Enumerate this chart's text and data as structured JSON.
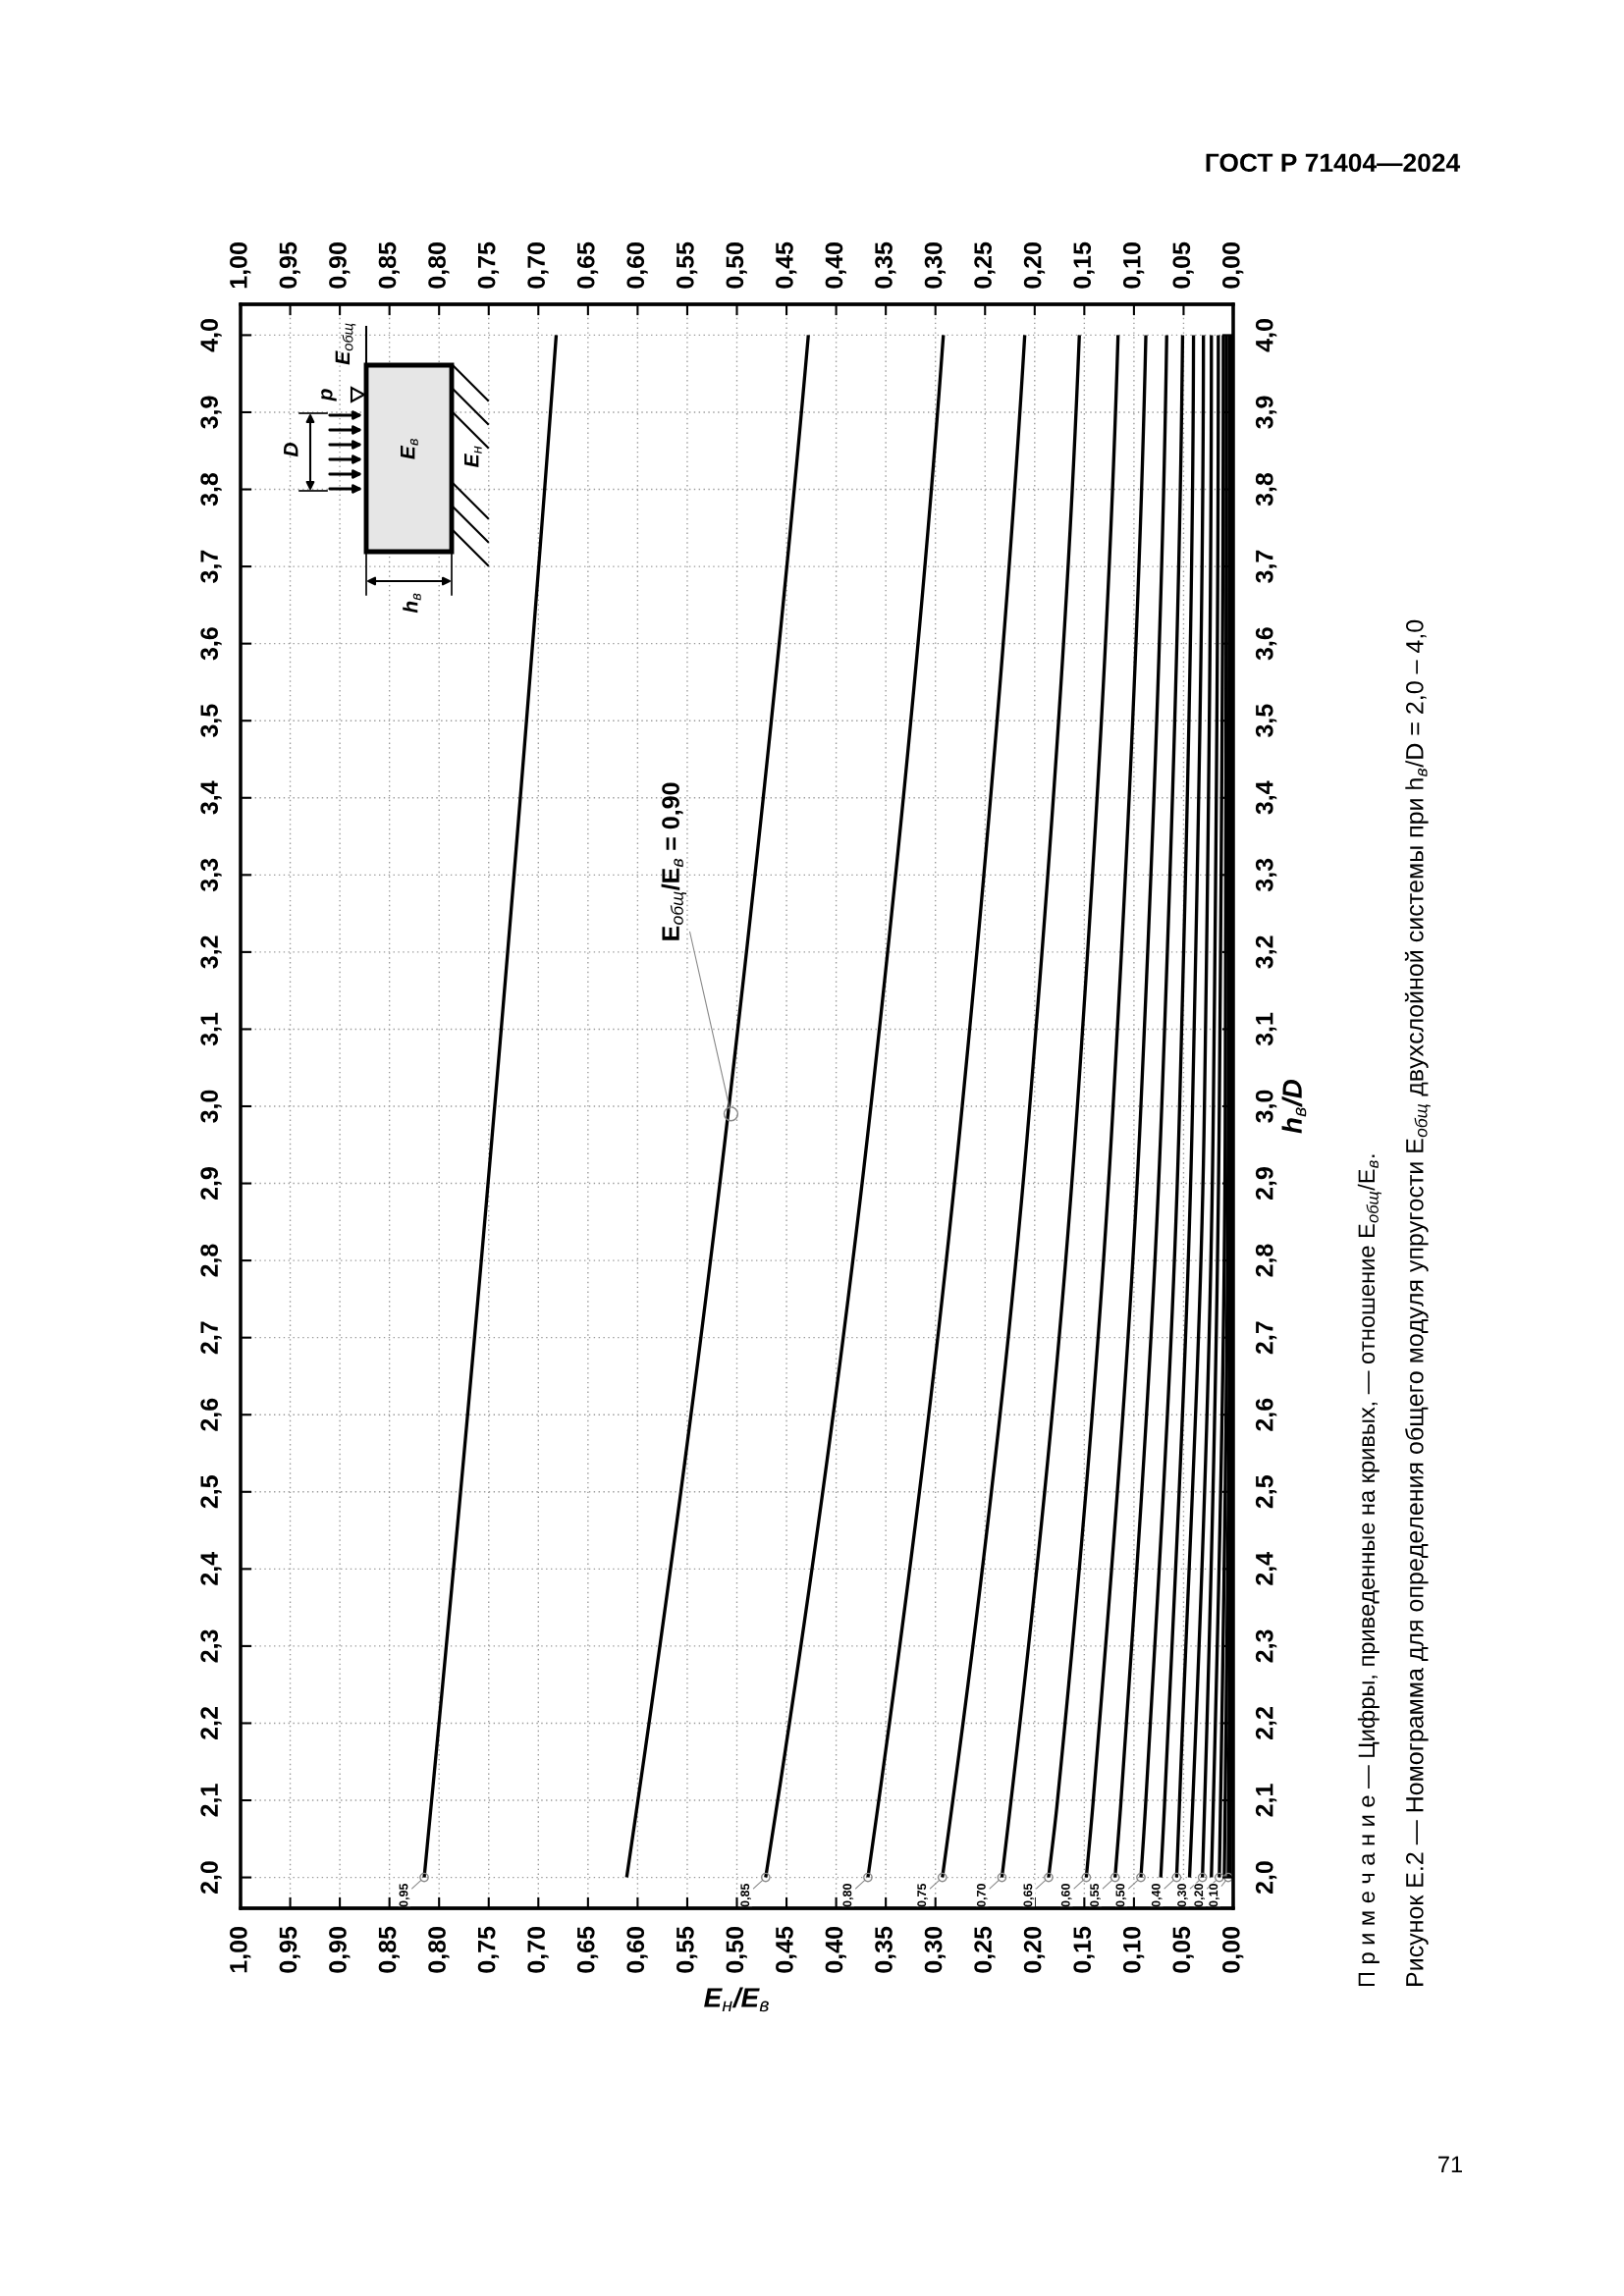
{
  "chart_data": {
    "type": "line",
    "title": "Рисунок Е.2 — Номограмма для определения общего модуля упругости E$_{общ}$ двухслойной системы при h$_{в}$/D = 2,0 – 4,0",
    "xlabel": "E$_{н}$/E$_{в}$",
    "y2label": "h$_{в}$/D",
    "xlim": [
      1.0,
      0.0
    ],
    "x2lim": [
      1.0,
      0.0
    ],
    "ylim": [
      1.96,
      4.04
    ],
    "y2lim": [
      1.96,
      4.04
    ],
    "xticks": [
      {
        "value": 1.0,
        "label": "1,00"
      },
      {
        "value": 0.95,
        "label": "0,95"
      },
      {
        "value": 0.9,
        "label": "0,90"
      },
      {
        "value": 0.85,
        "label": "0,85"
      },
      {
        "value": 0.8,
        "label": "0,80"
      },
      {
        "value": 0.75,
        "label": "0,75"
      },
      {
        "value": 0.7,
        "label": "0,70"
      },
      {
        "value": 0.65,
        "label": "0,65"
      },
      {
        "value": 0.6,
        "label": "0,60"
      },
      {
        "value": 0.55,
        "label": "0,55"
      },
      {
        "value": 0.5,
        "label": "0,50"
      },
      {
        "value": 0.45,
        "label": "0,45"
      },
      {
        "value": 0.4,
        "label": "0,40"
      },
      {
        "value": 0.35,
        "label": "0,35"
      },
      {
        "value": 0.3,
        "label": "0,30"
      },
      {
        "value": 0.25,
        "label": "0,25"
      },
      {
        "value": 0.2,
        "label": "0,20"
      },
      {
        "value": 0.15,
        "label": "0,15"
      },
      {
        "value": 0.1,
        "label": "0,10"
      },
      {
        "value": 0.05,
        "label": "0,05"
      },
      {
        "value": 0.0,
        "label": "0,00"
      }
    ],
    "x2ticks": [
      {
        "value": 1.0,
        "label": "1,00"
      },
      {
        "value": 0.95,
        "label": "0,95"
      },
      {
        "value": 0.9,
        "label": "0,90"
      },
      {
        "value": 0.85,
        "label": "0,85"
      },
      {
        "value": 0.8,
        "label": "0,80"
      },
      {
        "value": 0.75,
        "label": "0,75"
      },
      {
        "value": 0.7,
        "label": "0,70"
      },
      {
        "value": 0.65,
        "label": "0,65"
      },
      {
        "value": 0.6,
        "label": "0,60"
      },
      {
        "value": 0.55,
        "label": "0,55"
      },
      {
        "value": 0.5,
        "label": "0,50"
      },
      {
        "value": 0.45,
        "label": "0,45"
      },
      {
        "value": 0.4,
        "label": "0,40"
      },
      {
        "value": 0.35,
        "label": "0,35"
      },
      {
        "value": 0.3,
        "label": "0,30"
      },
      {
        "value": 0.25,
        "label": "0,25"
      },
      {
        "value": 0.2,
        "label": "0,20"
      },
      {
        "value": 0.15,
        "label": "0,15"
      },
      {
        "value": 0.1,
        "label": "0,10"
      },
      {
        "value": 0.05,
        "label": "0,05"
      },
      {
        "value": 0.0,
        "label": "0,00"
      }
    ],
    "yticks": [
      {
        "value": 2.0,
        "label": "2,0"
      },
      {
        "value": 2.1,
        "label": "2,1"
      },
      {
        "value": 2.2,
        "label": "2,2"
      },
      {
        "value": 2.3,
        "label": "2,3"
      },
      {
        "value": 2.4,
        "label": "2,4"
      },
      {
        "value": 2.5,
        "label": "2,5"
      },
      {
        "value": 2.6,
        "label": "2,6"
      },
      {
        "value": 2.7,
        "label": "2,7"
      },
      {
        "value": 2.8,
        "label": "2,8"
      },
      {
        "value": 2.9,
        "label": "2,9"
      },
      {
        "value": 3.0,
        "label": "3,0"
      },
      {
        "value": 3.1,
        "label": "3,1"
      },
      {
        "value": 3.2,
        "label": "3,2"
      },
      {
        "value": 3.3,
        "label": "3,3"
      },
      {
        "value": 3.4,
        "label": "3,4"
      },
      {
        "value": 3.5,
        "label": "3,5"
      },
      {
        "value": 3.6,
        "label": "3,6"
      },
      {
        "value": 3.7,
        "label": "3,7"
      },
      {
        "value": 3.8,
        "label": "3,8"
      },
      {
        "value": 3.9,
        "label": "3,9"
      },
      {
        "value": 4.0,
        "label": "4,0"
      }
    ],
    "y2ticks": [
      {
        "value": 2.0,
        "label": "2,0"
      },
      {
        "value": 2.1,
        "label": "2,1"
      },
      {
        "value": 2.2,
        "label": "2,2"
      },
      {
        "value": 2.3,
        "label": "2,3"
      },
      {
        "value": 2.4,
        "label": "2,4"
      },
      {
        "value": 2.5,
        "label": "2,5"
      },
      {
        "value": 2.6,
        "label": "2,6"
      },
      {
        "value": 2.7,
        "label": "2,7"
      },
      {
        "value": 2.8,
        "label": "2,8"
      },
      {
        "value": 2.9,
        "label": "2,9"
      },
      {
        "value": 3.0,
        "label": "3,0"
      },
      {
        "value": 3.1,
        "label": "3,1"
      },
      {
        "value": 3.2,
        "label": "3,2"
      },
      {
        "value": 3.3,
        "label": "3,3"
      },
      {
        "value": 3.4,
        "label": "3,4"
      },
      {
        "value": 3.5,
        "label": "3,5"
      },
      {
        "value": 3.6,
        "label": "3,6"
      },
      {
        "value": 3.7,
        "label": "3,7"
      },
      {
        "value": 3.8,
        "label": "3,8"
      },
      {
        "value": 3.9,
        "label": "3,9"
      },
      {
        "value": 4.0,
        "label": "4,0"
      }
    ],
    "grid": true,
    "series": [
      {
        "color": "#000000",
        "x": [
          0.815,
          0.744,
          0.682
        ],
        "values": [
          2.0,
          3.0,
          4.0
        ]
      },
      {
        "color": "#000000",
        "x": [
          0.611,
          0.508,
          0.428
        ],
        "values": [
          2.0,
          3.0,
          4.0
        ]
      },
      {
        "color": "#000000",
        "x": [
          0.471,
          0.365,
          0.292
        ],
        "values": [
          2.0,
          3.0,
          4.0
        ]
      },
      {
        "color": "#000000",
        "x": [
          0.368,
          0.273,
          0.21
        ],
        "values": [
          2.0,
          3.0,
          4.0
        ]
      },
      {
        "color": "#000000",
        "x": [
          0.293,
          0.205,
          0.155
        ],
        "values": [
          2.0,
          3.0,
          4.0
        ]
      },
      {
        "color": "#000000",
        "x": [
          0.233,
          0.157,
          0.116
        ],
        "values": [
          2.0,
          3.0,
          4.0
        ]
      },
      {
        "color": "#000000",
        "x": [
          0.186,
          0.177,
          0.121,
          0.088
        ],
        "values": [
          2.0,
          2.1,
          3.0,
          4.0
        ]
      },
      {
        "color": "#000000",
        "x": [
          0.148,
          0.141,
          0.093,
          0.067
        ],
        "values": [
          2.0,
          2.1,
          3.0,
          4.0
        ]
      },
      {
        "color": "#000000",
        "x": [
          0.119,
          0.113,
          0.072,
          0.051
        ],
        "values": [
          2.0,
          2.1,
          3.0,
          4.0
        ]
      },
      {
        "color": "#000000",
        "x": [
          0.093,
          0.088,
          0.054,
          0.04
        ],
        "values": [
          2.0,
          2.1,
          3.0,
          4.0
        ]
      },
      {
        "color": "#000000",
        "x": [
          0.073,
          0.069,
          0.041,
          0.03
        ],
        "values": [
          2.0,
          2.1,
          3.0,
          4.0
        ]
      },
      {
        "color": "#000000",
        "x": [
          0.057,
          0.054,
          0.029,
          0.022
        ],
        "values": [
          2.0,
          2.1,
          3.0,
          4.0
        ]
      },
      {
        "color": "#000000",
        "x": [
          0.044,
          0.02,
          0.015
        ],
        "values": [
          2.0,
          3.0,
          4.0
        ]
      },
      {
        "color": "#000000",
        "x": [
          0.031,
          0.014,
          0.01
        ],
        "values": [
          2.0,
          3.0,
          4.0
        ]
      },
      {
        "color": "#000000",
        "x": [
          0.022,
          0.008,
          0.007
        ],
        "values": [
          2.0,
          3.0,
          4.0
        ]
      },
      {
        "color": "#000000",
        "x": [
          0.014,
          0.005,
          0.004
        ],
        "values": [
          2.0,
          3.0,
          4.0
        ]
      },
      {
        "color": "#000000",
        "x": [
          0.009,
          0.003,
          0.003
        ],
        "values": [
          2.0,
          3.0,
          4.0
        ]
      },
      {
        "color": "#000000",
        "x": [
          0.005,
          0.002,
          0.002
        ],
        "values": [
          2.0,
          3.0,
          4.0
        ]
      },
      {
        "color": "#000000",
        "x": [
          0.003,
          0.001,
          0.001
        ],
        "values": [
          2.0,
          3.0,
          4.0
        ]
      }
    ],
    "annotations": [
      "ГОСТ Р 71404—2024",
      "П р и м е ч а н и е — Цифры, приведенные на кривых, — отношение E$_{общ}$/E$_{в}$.",
      "71",
      "E$_{общ}$",
      "p",
      "D",
      "E$_{в}$",
      "E$_{н}$",
      "h$_{в}$",
      {
        "text": "E$_{общ}$/E$_{в}$ = 0,90",
        "x": 0.506,
        "y": 2.99
      },
      {
        "text": "0,95",
        "x": 0.815,
        "y": 2.0
      },
      {
        "text": "0,85",
        "x": 0.471,
        "y": 2.0
      },
      {
        "text": "0,80",
        "x": 0.368,
        "y": 2.0
      },
      {
        "text": "0,75",
        "x": 0.293,
        "y": 2.0
      },
      {
        "text": "0,70",
        "x": 0.233,
        "y": 2.0
      },
      {
        "text": "0,65",
        "x": 0.186,
        "y": 2.0
      },
      {
        "text": "0,60",
        "x": 0.148,
        "y": 2.0
      },
      {
        "text": "0,55",
        "x": 0.119,
        "y": 2.0
      },
      {
        "text": "0,50",
        "x": 0.093,
        "y": 2.0
      },
      {
        "text": "0,40",
        "x": 0.057,
        "y": 2.0
      },
      {
        "text": "0,30",
        "x": 0.031,
        "y": 2.0
      },
      {
        "text": "0,20",
        "x": 0.014,
        "y": 2.0
      },
      {
        "text": "0,10",
        "x": 0.005,
        "y": 2.0
      }
    ]
  }
}
